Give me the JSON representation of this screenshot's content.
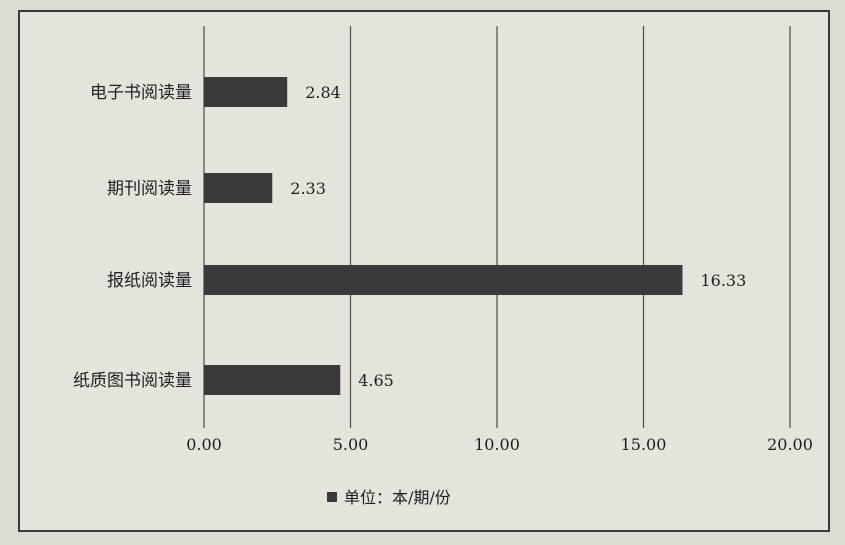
{
  "chart_data": {
    "type": "bar",
    "orientation": "horizontal",
    "categories": [
      "电子书阅读量",
      "期刊阅读量",
      "报纸阅读量",
      "纸质图书阅读量"
    ],
    "values": [
      2.84,
      2.33,
      16.33,
      4.65
    ],
    "value_labels": [
      "2.84",
      "2.33",
      "16.33",
      "4.65"
    ],
    "xlim": [
      0,
      20
    ],
    "xticks": [
      "0.00",
      "5.00",
      "10.00",
      "15.00",
      "20.00"
    ],
    "grid": "vertical",
    "legend": {
      "label": "单位：本/期/份",
      "placement": "bottom-center"
    },
    "colors": {
      "bar": "#3a3a3a",
      "grid": "#4a4a4a",
      "text": "#1e1e1e"
    }
  }
}
